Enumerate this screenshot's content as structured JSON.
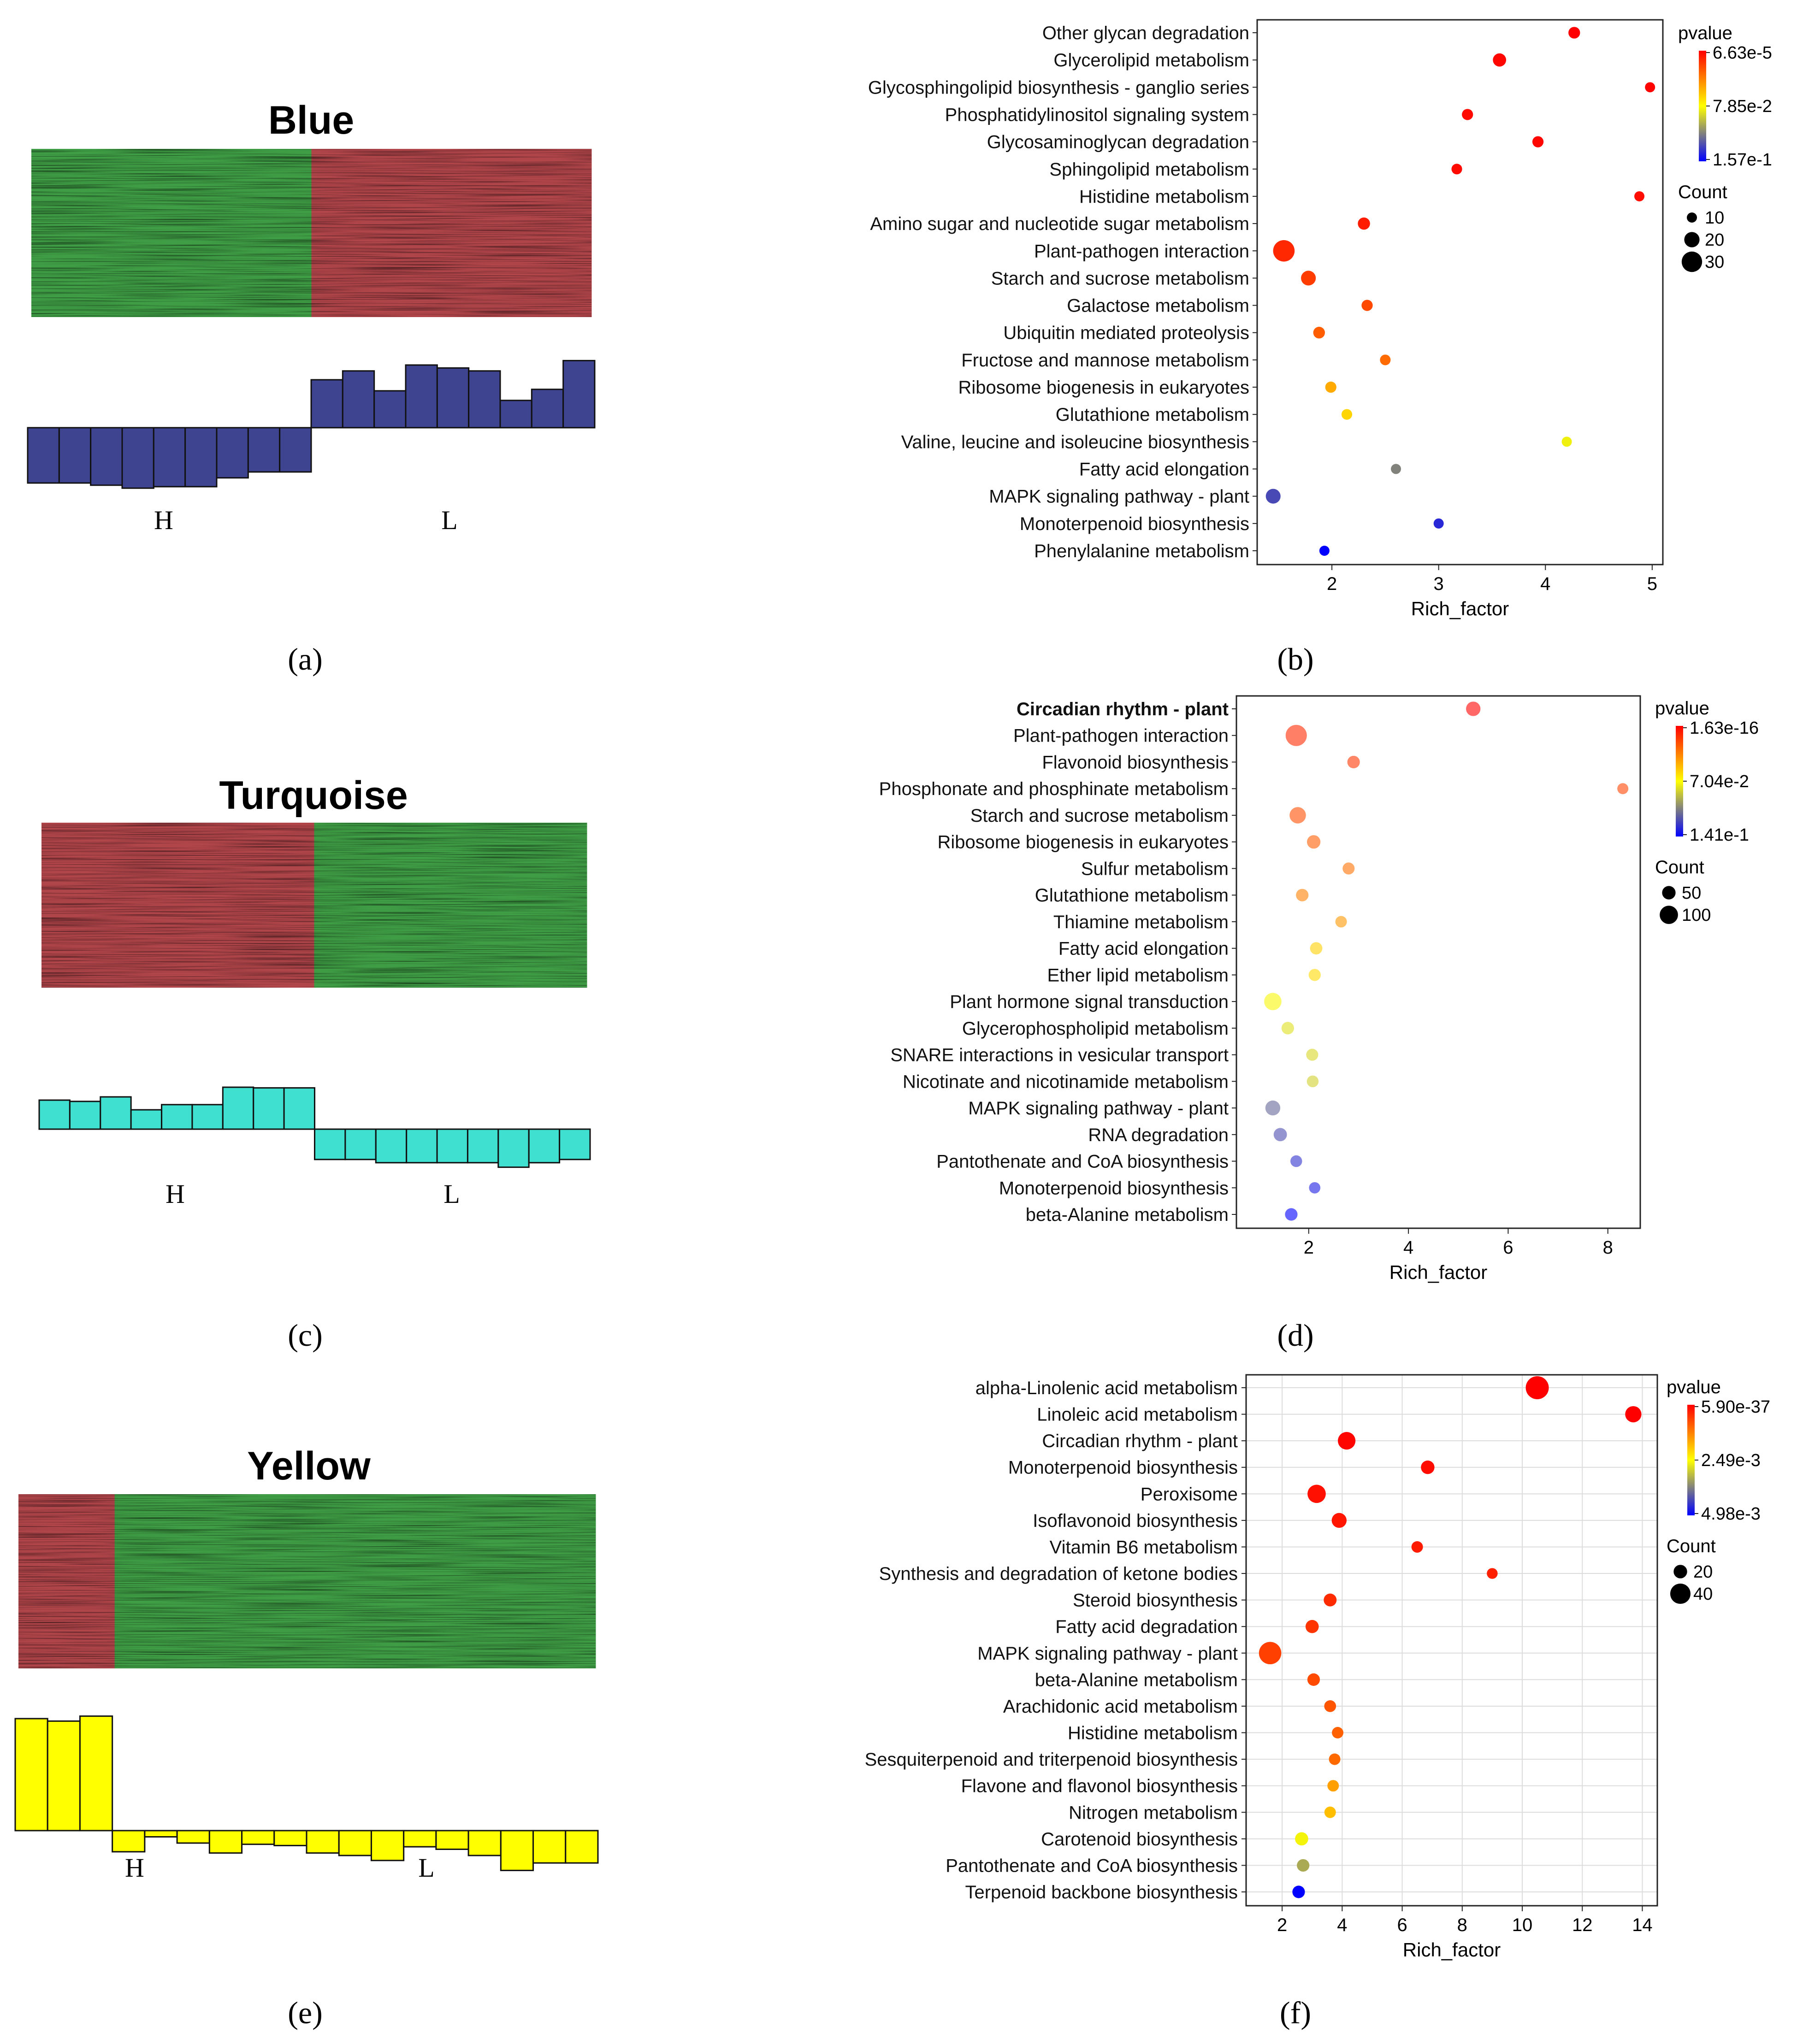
{
  "figure": {
    "captions": [
      "(a)",
      "(b)",
      "(c)",
      "(d)",
      "(e)",
      "(f)"
    ]
  },
  "modules": [
    {
      "title": "Blue",
      "color": "#3f4491",
      "group_labels": [
        "H",
        "L"
      ],
      "eigengene": [
        -0.75,
        -0.75,
        -0.78,
        -0.82,
        -0.8,
        -0.8,
        -0.68,
        -0.6,
        -0.6,
        0.65,
        0.77,
        0.5,
        0.85,
        0.81,
        0.77,
        0.37,
        0.52,
        0.91
      ],
      "heatmap_pattern": [
        "green",
        "green",
        "green",
        "red",
        "red",
        "red"
      ]
    },
    {
      "title": "Turquoise",
      "color": "#40e0d0",
      "group_labels": [
        "H",
        "L"
      ],
      "eigengene": [
        0.45,
        0.43,
        0.5,
        0.3,
        0.38,
        0.38,
        0.65,
        0.64,
        0.64,
        -0.47,
        -0.47,
        -0.52,
        -0.52,
        -0.52,
        -0.52,
        -0.59,
        -0.52,
        -0.47
      ],
      "heatmap_pattern": [
        "red",
        "red",
        "red",
        "green",
        "green",
        "green"
      ]
    },
    {
      "title": "Yellow",
      "color": "#ffff00",
      "group_labels": [
        "H",
        "L"
      ],
      "eigengene": [
        0.9,
        0.88,
        0.92,
        -0.17,
        -0.05,
        -0.1,
        -0.18,
        -0.11,
        -0.12,
        -0.18,
        -0.2,
        -0.24,
        -0.13,
        -0.15,
        -0.2,
        -0.32,
        -0.26,
        -0.26
      ],
      "heatmap_pattern": [
        "red",
        "green",
        "green",
        "green",
        "green",
        "green"
      ]
    }
  ],
  "chart_data": [
    {
      "type": "scatter",
      "panel": "b",
      "xlabel": "Rich_factor",
      "xlim": [
        1.3,
        5.1
      ],
      "xticks": [
        2,
        3,
        4,
        5
      ],
      "grid": false,
      "bold_terms": [],
      "legend": {
        "color_title": "pvalue",
        "color_ticks": [
          "6.63e-5",
          "7.85e-2",
          "1.57e-1"
        ],
        "size_title": "Count",
        "size_ticks": [
          10,
          20,
          30
        ]
      },
      "terms": [
        {
          "name": "Other glycan degradation",
          "rich_factor": 4.27,
          "pvalue": 0.004,
          "count": 13
        },
        {
          "name": "Glycerolipid metabolism",
          "rich_factor": 3.57,
          "pvalue": 0.006,
          "count": 16
        },
        {
          "name": "Glycosphingolipid biosynthesis - ganglio series",
          "rich_factor": 4.98,
          "pvalue": 0.005,
          "count": 10
        },
        {
          "name": "Phosphatidylinositol signaling system",
          "rich_factor": 3.27,
          "pvalue": 0.007,
          "count": 12
        },
        {
          "name": "Glycosaminoglycan degradation",
          "rich_factor": 3.93,
          "pvalue": 0.006,
          "count": 12
        },
        {
          "name": "Sphingolipid metabolism",
          "rich_factor": 3.17,
          "pvalue": 0.007,
          "count": 11
        },
        {
          "name": "Histidine metabolism",
          "rich_factor": 4.88,
          "pvalue": 0.008,
          "count": 9
        },
        {
          "name": "Amino sugar and nucleotide sugar metabolism",
          "rich_factor": 2.3,
          "pvalue": 0.012,
          "count": 14
        },
        {
          "name": "Plant-pathogen interaction",
          "rich_factor": 1.55,
          "pvalue": 0.016,
          "count": 32
        },
        {
          "name": "Starch and sucrose metabolism",
          "rich_factor": 1.78,
          "pvalue": 0.022,
          "count": 19
        },
        {
          "name": "Galactose metabolism",
          "rich_factor": 2.33,
          "pvalue": 0.026,
          "count": 12
        },
        {
          "name": "Ubiquitin mediated proteolysis",
          "rich_factor": 1.88,
          "pvalue": 0.032,
          "count": 13
        },
        {
          "name": "Fructose and mannose metabolism",
          "rich_factor": 2.5,
          "pvalue": 0.036,
          "count": 11
        },
        {
          "name": "Ribosome biogenesis in eukaryotes",
          "rich_factor": 1.99,
          "pvalue": 0.055,
          "count": 12
        },
        {
          "name": "Glutathione metabolism",
          "rich_factor": 2.14,
          "pvalue": 0.068,
          "count": 11
        },
        {
          "name": "Valine, leucine and isoleucine biosynthesis",
          "rich_factor": 4.2,
          "pvalue": 0.085,
          "count": 7
        },
        {
          "name": "Fatty acid elongation",
          "rich_factor": 2.6,
          "pvalue": 0.118,
          "count": 8
        },
        {
          "name": "MAPK signaling pathway - plant",
          "rich_factor": 1.45,
          "pvalue": 0.135,
          "count": 19
        },
        {
          "name": "Monoterpenoid biosynthesis",
          "rich_factor": 3.0,
          "pvalue": 0.145,
          "count": 7
        },
        {
          "name": "Phenylalanine metabolism",
          "rich_factor": 1.93,
          "pvalue": 0.157,
          "count": 9
        }
      ]
    },
    {
      "type": "scatter",
      "panel": "d",
      "xlabel": "Rich_factor",
      "xlim": [
        0.55,
        8.65
      ],
      "xticks": [
        2,
        4,
        6,
        8
      ],
      "grid": false,
      "bold_terms": [
        "Circadian rhythm - plant"
      ],
      "legend": {
        "color_title": "pvalue",
        "color_ticks": [
          "1.63e-16",
          "7.04e-2",
          "1.41e-1"
        ],
        "size_title": "Count",
        "size_ticks": [
          50,
          100
        ]
      },
      "terms": [
        {
          "name": "Circadian rhythm - plant",
          "rich_factor": 5.3,
          "pvalue": 0.0,
          "count": 60
        },
        {
          "name": "Plant-pathogen interaction",
          "rich_factor": 1.75,
          "pvalue": 0.011,
          "count": 130
        },
        {
          "name": "Flavonoid biosynthesis",
          "rich_factor": 2.9,
          "pvalue": 0.014,
          "count": 40
        },
        {
          "name": "Phosphonate and phosphinate metabolism",
          "rich_factor": 8.3,
          "pvalue": 0.018,
          "count": 25
        },
        {
          "name": "Starch and sucrose metabolism",
          "rich_factor": 1.78,
          "pvalue": 0.02,
          "count": 80
        },
        {
          "name": "Ribosome biogenesis in eukaryotes",
          "rich_factor": 2.1,
          "pvalue": 0.025,
          "count": 50
        },
        {
          "name": "Sulfur metabolism",
          "rich_factor": 2.8,
          "pvalue": 0.03,
          "count": 35
        },
        {
          "name": "Glutathione metabolism",
          "rich_factor": 1.87,
          "pvalue": 0.034,
          "count": 40
        },
        {
          "name": "Thiamine metabolism",
          "rich_factor": 2.65,
          "pvalue": 0.04,
          "count": 30
        },
        {
          "name": "Fatty acid elongation",
          "rich_factor": 2.15,
          "pvalue": 0.055,
          "count": 38
        },
        {
          "name": "Ether lipid metabolism",
          "rich_factor": 2.12,
          "pvalue": 0.058,
          "count": 36
        },
        {
          "name": "Plant hormone signal transduction",
          "rich_factor": 1.28,
          "pvalue": 0.07,
          "count": 90
        },
        {
          "name": "Glycerophospholipid metabolism",
          "rich_factor": 1.58,
          "pvalue": 0.076,
          "count": 40
        },
        {
          "name": "SNARE interactions in vesicular transport",
          "rich_factor": 2.07,
          "pvalue": 0.078,
          "count": 35
        },
        {
          "name": "Nicotinate and nicotinamide metabolism",
          "rich_factor": 2.08,
          "pvalue": 0.08,
          "count": 32
        },
        {
          "name": "MAPK signaling pathway - plant",
          "rich_factor": 1.28,
          "pvalue": 0.108,
          "count": 65
        },
        {
          "name": "RNA degradation",
          "rich_factor": 1.43,
          "pvalue": 0.115,
          "count": 48
        },
        {
          "name": "Pantothenate and CoA biosynthesis",
          "rich_factor": 1.75,
          "pvalue": 0.122,
          "count": 32
        },
        {
          "name": "Monoterpenoid biosynthesis",
          "rich_factor": 2.12,
          "pvalue": 0.128,
          "count": 28
        },
        {
          "name": "beta-Alanine metabolism",
          "rich_factor": 1.65,
          "pvalue": 0.135,
          "count": 40
        }
      ]
    },
    {
      "type": "scatter",
      "panel": "f",
      "xlabel": "Rich_factor",
      "xlim": [
        0.8,
        14.5
      ],
      "xticks": [
        2,
        4,
        6,
        8,
        10,
        12,
        14
      ],
      "grid": true,
      "bold_terms": [],
      "legend": {
        "color_title": "pvalue",
        "color_ticks": [
          "5.90e-37",
          "2.49e-3",
          "4.98e-3"
        ],
        "size_title": "Count",
        "size_ticks": [
          20,
          40
        ]
      },
      "terms": [
        {
          "name": "alpha-Linolenic acid metabolism",
          "rich_factor": 10.5,
          "pvalue": 0.0,
          "count": 48
        },
        {
          "name": "Linoleic acid metabolism",
          "rich_factor": 13.7,
          "pvalue": 0.0,
          "count": 28
        },
        {
          "name": "Circadian rhythm - plant",
          "rich_factor": 4.15,
          "pvalue": 5e-05,
          "count": 32
        },
        {
          "name": "Monoterpenoid biosynthesis",
          "rich_factor": 6.85,
          "pvalue": 0.0001,
          "count": 20
        },
        {
          "name": "Peroxisome",
          "rich_factor": 3.15,
          "pvalue": 0.00015,
          "count": 34
        },
        {
          "name": "Isoflavonoid biosynthesis",
          "rich_factor": 3.9,
          "pvalue": 0.0002,
          "count": 24
        },
        {
          "name": "Vitamin B6 metabolism",
          "rich_factor": 6.5,
          "pvalue": 0.00025,
          "count": 14
        },
        {
          "name": "Synthesis and degradation of ketone bodies",
          "rich_factor": 9.0,
          "pvalue": 0.0003,
          "count": 12
        },
        {
          "name": "Steroid biosynthesis",
          "rich_factor": 3.6,
          "pvalue": 0.0004,
          "count": 18
        },
        {
          "name": "Fatty acid degradation",
          "rich_factor": 3.0,
          "pvalue": 0.0005,
          "count": 19
        },
        {
          "name": "MAPK signaling pathway - plant",
          "rich_factor": 1.6,
          "pvalue": 0.0006,
          "count": 46
        },
        {
          "name": "beta-Alanine metabolism",
          "rich_factor": 3.05,
          "pvalue": 0.0007,
          "count": 17
        },
        {
          "name": "Arachidonic acid metabolism",
          "rich_factor": 3.6,
          "pvalue": 0.0008,
          "count": 15
        },
        {
          "name": "Histidine metabolism",
          "rich_factor": 3.85,
          "pvalue": 0.0009,
          "count": 14
        },
        {
          "name": "Sesquiterpenoid and triterpenoid biosynthesis",
          "rich_factor": 3.75,
          "pvalue": 0.001,
          "count": 14
        },
        {
          "name": "Flavone and flavonol biosynthesis",
          "rich_factor": 3.7,
          "pvalue": 0.0015,
          "count": 14
        },
        {
          "name": "Nitrogen metabolism",
          "rich_factor": 3.6,
          "pvalue": 0.0018,
          "count": 14
        },
        {
          "name": "Carotenoid biosynthesis",
          "rich_factor": 2.65,
          "pvalue": 0.0025,
          "count": 19
        },
        {
          "name": "Pantothenate and CoA biosynthesis",
          "rich_factor": 2.7,
          "pvalue": 0.0032,
          "count": 17
        },
        {
          "name": "Terpenoid backbone biosynthesis",
          "rich_factor": 2.55,
          "pvalue": 0.0048,
          "count": 17
        }
      ]
    }
  ]
}
